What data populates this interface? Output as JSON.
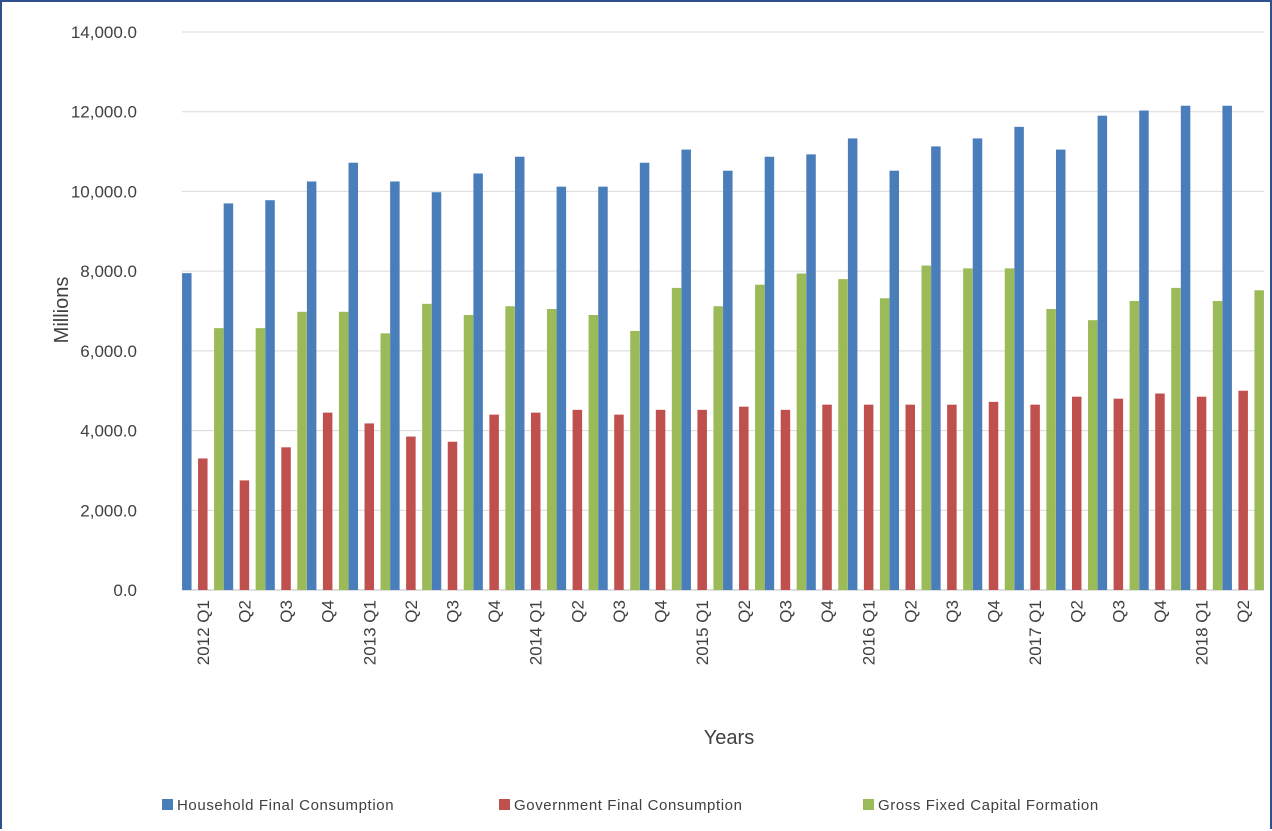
{
  "chart_data": {
    "type": "bar",
    "title": "",
    "xlabel": "Years",
    "ylabel": "Millions",
    "ylim": [
      0,
      14000
    ],
    "yticks": [
      "0.0",
      "2,000.0",
      "4,000.0",
      "6,000.0",
      "8,000.0",
      "10,000.0",
      "12,000.0",
      "14,000.0"
    ],
    "ytick_values": [
      0,
      2000,
      4000,
      6000,
      8000,
      10000,
      12000,
      14000
    ],
    "grid": true,
    "legend_position": "bottom",
    "categories": [
      "2012 Q1",
      "Q2",
      "Q3",
      "Q4",
      "2013 Q1",
      "Q2",
      "Q3",
      "Q4",
      "2014 Q1",
      "Q2",
      "Q3",
      "Q4",
      "2015 Q1",
      "Q2",
      "Q3",
      "Q4",
      "2016 Q1",
      "Q2",
      "Q3",
      "Q4",
      "2017 Q1",
      "Q2",
      "Q3",
      "Q4",
      "2018 Q1",
      "Q2"
    ],
    "series": [
      {
        "name": "Household Final Consumption",
        "color": "#4a7ebb",
        "values": [
          7950,
          9700,
          9780,
          10250,
          10720,
          10250,
          9980,
          10450,
          10870,
          10120,
          10120,
          10720,
          11050,
          10520,
          10870,
          10930,
          11330,
          10520,
          11130,
          11330,
          11620,
          11050,
          11900,
          12030,
          12150,
          12150
        ]
      },
      {
        "name": "Government Final Consumption",
        "color": "#c0504d",
        "values": [
          3300,
          2750,
          3580,
          4450,
          4180,
          3850,
          3720,
          4400,
          4450,
          4520,
          4400,
          4520,
          4520,
          4600,
          4520,
          4650,
          4650,
          4650,
          4650,
          4720,
          4650,
          4850,
          4800,
          4930,
          4850,
          5000
        ]
      },
      {
        "name": "Gross Fixed Capital Formation",
        "color": "#9bbb59",
        "values": [
          6570,
          6570,
          6980,
          6980,
          6440,
          7180,
          6900,
          7120,
          7050,
          6900,
          6500,
          7580,
          7120,
          7660,
          7940,
          7800,
          7320,
          8140,
          8070,
          8070,
          7050,
          6770,
          7250,
          7580,
          7250,
          7520
        ]
      }
    ]
  }
}
